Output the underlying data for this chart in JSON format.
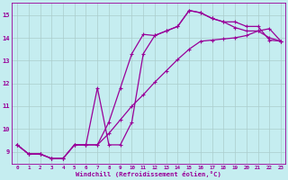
{
  "xlabel": "Windchill (Refroidissement éolien,°C)",
  "bg_color": "#c5edf0",
  "line_color": "#990099",
  "grid_color": "#aacccc",
  "xlim_min": -0.5,
  "xlim_max": 23.4,
  "ylim_min": 8.45,
  "ylim_max": 15.55,
  "xticks": [
    0,
    1,
    2,
    3,
    4,
    5,
    6,
    7,
    8,
    9,
    10,
    11,
    12,
    13,
    14,
    15,
    16,
    17,
    18,
    19,
    20,
    21,
    22,
    23
  ],
  "yticks": [
    9,
    10,
    11,
    12,
    13,
    14,
    15
  ],
  "curve1_x": [
    0,
    1,
    2,
    3,
    4,
    5,
    6,
    7,
    8,
    9,
    10,
    11,
    12,
    13,
    14,
    15,
    16,
    17,
    18,
    19,
    20,
    21,
    22,
    23
  ],
  "curve1_y": [
    9.3,
    8.9,
    8.9,
    8.7,
    8.7,
    9.3,
    9.3,
    9.3,
    10.3,
    11.8,
    13.3,
    14.15,
    14.1,
    14.3,
    14.5,
    15.2,
    15.1,
    14.85,
    14.7,
    14.7,
    14.5,
    14.5,
    13.9,
    13.85
  ],
  "curve2_x": [
    0,
    1,
    2,
    3,
    4,
    5,
    6,
    7,
    8,
    9,
    10,
    11,
    12,
    13,
    14,
    15,
    16,
    17,
    18,
    19,
    20,
    21,
    22,
    23
  ],
  "curve2_y": [
    9.3,
    8.9,
    8.9,
    8.7,
    8.7,
    9.3,
    9.3,
    9.3,
    9.8,
    10.4,
    11.0,
    11.5,
    12.05,
    12.55,
    13.05,
    13.5,
    13.85,
    13.9,
    13.95,
    14.0,
    14.1,
    14.3,
    14.4,
    13.85
  ],
  "curve3_x": [
    0,
    1,
    2,
    3,
    4,
    5,
    6,
    7,
    8,
    9,
    10,
    11,
    12,
    13,
    14,
    15,
    16,
    17,
    18,
    19,
    20,
    21,
    22,
    23
  ],
  "curve3_y": [
    9.3,
    8.9,
    8.9,
    8.7,
    8.7,
    9.3,
    9.3,
    11.8,
    9.3,
    9.3,
    10.3,
    13.3,
    14.1,
    14.3,
    14.5,
    15.2,
    15.1,
    14.85,
    14.7,
    14.45,
    14.3,
    14.3,
    14.0,
    13.85
  ]
}
